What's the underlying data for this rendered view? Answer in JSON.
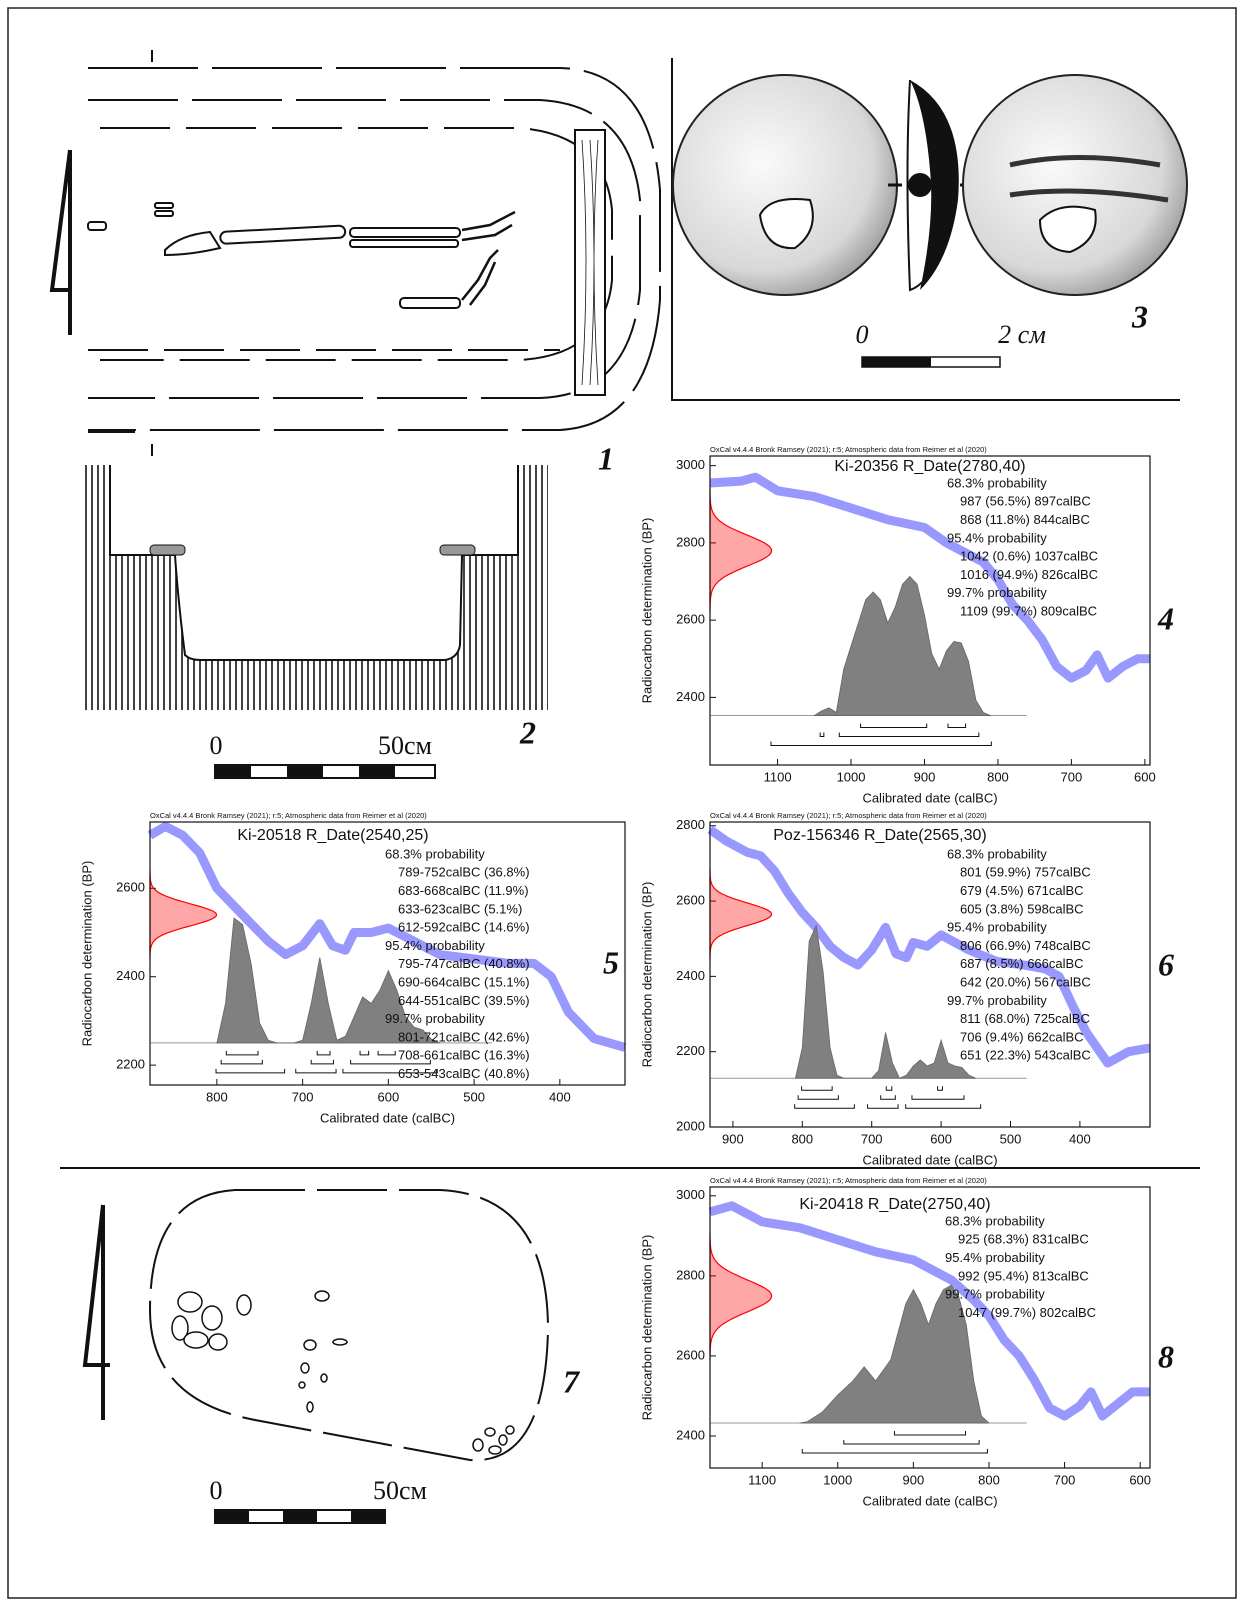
{
  "figure": {
    "panel_labels": [
      "1",
      "2",
      "3",
      "4",
      "5",
      "6",
      "7",
      "8"
    ],
    "scale_bars": [
      {
        "start": "0",
        "end": "50см"
      },
      {
        "start": "0",
        "end": "2 см"
      },
      {
        "start": "0",
        "end": "50см"
      }
    ]
  },
  "chart_data": [
    {
      "type": "calibration",
      "header": "OxCal v4.4.4 Bronk Ramsey (2021); r:5; Atmospheric data from Reimer et al (2020)",
      "title": "Ki-20356 R_Date(2780,40)",
      "r_date": {
        "mean": 2780,
        "sd": 40
      },
      "xlabel": "Calibrated date (calBC)",
      "ylabel": "Radiocarbon determination (BP)",
      "xlim": [
        1192,
        593
      ],
      "ylim": [
        2225,
        3025
      ],
      "xticks": [
        1100,
        1000,
        900,
        800,
        700,
        600
      ],
      "yticks": [
        2400,
        2600,
        2800,
        3000
      ],
      "likelihood_color": "#ff0000",
      "curve": {
        "color": "#4444ff",
        "x": [
          1192,
          1150,
          1130,
          1100,
          1050,
          1000,
          950,
          900,
          870,
          850,
          820,
          800,
          780,
          760,
          740,
          720,
          700,
          680,
          665,
          650,
          630,
          610,
          593
        ],
        "values": [
          2955,
          2960,
          2970,
          2935,
          2920,
          2890,
          2860,
          2840,
          2800,
          2780,
          2750,
          2705,
          2640,
          2600,
          2550,
          2480,
          2450,
          2470,
          2510,
          2450,
          2480,
          2500,
          2500
        ]
      },
      "posterior": {
        "color": "#808080",
        "x": [
          1050,
          1040,
          1030,
          1020,
          1010,
          1000,
          990,
          980,
          970,
          960,
          950,
          940,
          930,
          920,
          910,
          900,
          890,
          880,
          870,
          860,
          850,
          840,
          830,
          820,
          810
        ],
        "values": [
          0,
          0.03,
          0.05,
          0.02,
          0.3,
          0.45,
          0.6,
          0.75,
          0.8,
          0.75,
          0.6,
          0.7,
          0.85,
          0.9,
          0.85,
          0.65,
          0.4,
          0.3,
          0.42,
          0.48,
          0.47,
          0.35,
          0.1,
          0.02,
          0
        ]
      },
      "ranges": [
        {
          "label": "68.3% probability",
          "intervals": [
            {
              "from": 987,
              "to": 897,
              "text": "987 (56.5%) 897calBC"
            },
            {
              "from": 868,
              "to": 844,
              "text": "868 (11.8%) 844calBC"
            }
          ]
        },
        {
          "label": "95.4% probability",
          "intervals": [
            {
              "from": 1042,
              "to": 1037,
              "text": "1042 (0.6%) 1037calBC"
            },
            {
              "from": 1016,
              "to": 826,
              "text": "1016 (94.9%) 826calBC"
            }
          ]
        },
        {
          "label": "99.7% probability",
          "intervals": [
            {
              "from": 1109,
              "to": 809,
              "text": "1109 (99.7%) 809calBC"
            }
          ]
        }
      ]
    },
    {
      "type": "calibration",
      "header": "OxCal v4.4.4 Bronk Ramsey (2021); r:5; Atmospheric data from Reimer et al (2020)",
      "title": "Ki-20518 R_Date(2540,25)",
      "r_date": {
        "mean": 2540,
        "sd": 25
      },
      "xlabel": "Calibrated date (calBC)",
      "ylabel": "Radiocarbon determination (BP)",
      "xlim": [
        878,
        324
      ],
      "ylim": [
        2155,
        2750
      ],
      "xticks": [
        800,
        700,
        600,
        500,
        400
      ],
      "yticks": [
        2200,
        2400,
        2600
      ],
      "likelihood_color": "#ff0000",
      "curve": {
        "color": "#4444ff",
        "x": [
          878,
          860,
          840,
          820,
          800,
          780,
          760,
          740,
          720,
          700,
          680,
          665,
          650,
          640,
          620,
          600,
          580,
          560,
          540,
          500,
          460,
          430,
          410,
          390,
          360,
          324
        ],
        "values": [
          2720,
          2740,
          2720,
          2680,
          2600,
          2560,
          2520,
          2480,
          2450,
          2470,
          2520,
          2470,
          2460,
          2500,
          2500,
          2510,
          2490,
          2470,
          2450,
          2440,
          2430,
          2430,
          2400,
          2320,
          2260,
          2240
        ]
      },
      "posterior": {
        "color": "#808080",
        "x": [
          800,
          790,
          780,
          770,
          760,
          750,
          740,
          730,
          720,
          710,
          700,
          690,
          680,
          670,
          660,
          650,
          640,
          630,
          620,
          610,
          600,
          590,
          580,
          570,
          560,
          550,
          540
        ],
        "values": [
          0,
          0.3,
          0.95,
          0.9,
          0.6,
          0.15,
          0.02,
          0,
          0,
          0,
          0.02,
          0.3,
          0.65,
          0.3,
          0.02,
          0.05,
          0.2,
          0.35,
          0.3,
          0.4,
          0.55,
          0.4,
          0.2,
          0.12,
          0.1,
          0.03,
          0
        ]
      },
      "ranges": [
        {
          "label": "68.3% probability",
          "intervals": [
            {
              "from": 789,
              "to": 752,
              "text": "789-752calBC (36.8%)"
            },
            {
              "from": 683,
              "to": 668,
              "text": "683-668calBC (11.9%)"
            },
            {
              "from": 633,
              "to": 623,
              "text": "633-623calBC (5.1%)"
            },
            {
              "from": 612,
              "to": 592,
              "text": "612-592calBC (14.6%)"
            }
          ]
        },
        {
          "label": "95.4% probability",
          "intervals": [
            {
              "from": 795,
              "to": 747,
              "text": "795-747calBC (40.8%)"
            },
            {
              "from": 690,
              "to": 664,
              "text": "690-664calBC (15.1%)"
            },
            {
              "from": 644,
              "to": 551,
              "text": "644-551calBC (39.5%)"
            }
          ]
        },
        {
          "label": "99.7% probability",
          "intervals": [
            {
              "from": 801,
              "to": 721,
              "text": "801-721calBC (42.6%)"
            },
            {
              "from": 708,
              "to": 661,
              "text": "708-661calBC (16.3%)"
            },
            {
              "from": 653,
              "to": 543,
              "text": "653-543calBC (40.8%)"
            }
          ]
        }
      ]
    },
    {
      "type": "calibration",
      "header": "OxCal v4.4.4 Bronk Ramsey (2021); r:5; Atmospheric data from Reimer et al (2020)",
      "title": "Poz-156346 R_Date(2565,30)",
      "r_date": {
        "mean": 2565,
        "sd": 30
      },
      "xlabel": "Calibrated date (calBC)",
      "ylabel": "Radiocarbon determination (BP)",
      "xlim": [
        933,
        299
      ],
      "ylim": [
        2000,
        2810
      ],
      "xticks": [
        900,
        800,
        700,
        600,
        500,
        400
      ],
      "yticks": [
        2000,
        2200,
        2400,
        2600,
        2800
      ],
      "likelihood_color": "#ff0000",
      "curve": {
        "color": "#4444ff",
        "x": [
          933,
          910,
          880,
          860,
          840,
          820,
          800,
          780,
          760,
          740,
          720,
          700,
          680,
          665,
          650,
          640,
          620,
          600,
          580,
          560,
          520,
          480,
          450,
          430,
          410,
          390,
          360,
          330,
          299
        ],
        "values": [
          2790,
          2760,
          2730,
          2720,
          2680,
          2620,
          2570,
          2530,
          2480,
          2450,
          2430,
          2470,
          2530,
          2460,
          2450,
          2490,
          2480,
          2510,
          2490,
          2470,
          2440,
          2430,
          2420,
          2400,
          2320,
          2250,
          2170,
          2200,
          2210
        ]
      },
      "posterior": {
        "color": "#808080",
        "x": [
          810,
          800,
          790,
          780,
          770,
          760,
          750,
          740,
          700,
          690,
          680,
          670,
          660,
          650,
          640,
          630,
          620,
          610,
          600,
          590,
          580,
          570,
          560,
          550
        ],
        "values": [
          0,
          0.2,
          0.9,
          1.0,
          0.7,
          0.2,
          0.02,
          0,
          0,
          0.05,
          0.3,
          0.1,
          0,
          0.02,
          0.08,
          0.12,
          0.08,
          0.1,
          0.25,
          0.1,
          0.08,
          0.07,
          0.02,
          0
        ]
      },
      "ranges": [
        {
          "label": "68.3% probability",
          "intervals": [
            {
              "from": 801,
              "to": 757,
              "text": "801 (59.9%) 757calBC"
            },
            {
              "from": 679,
              "to": 671,
              "text": "679 (4.5%) 671calBC"
            },
            {
              "from": 605,
              "to": 598,
              "text": "605 (3.8%) 598calBC"
            }
          ]
        },
        {
          "label": "95.4% probability",
          "intervals": [
            {
              "from": 806,
              "to": 748,
              "text": "806 (66.9%) 748calBC"
            },
            {
              "from": 687,
              "to": 666,
              "text": "687 (8.5%) 666calBC"
            },
            {
              "from": 642,
              "to": 567,
              "text": "642 (20.0%) 567calBC"
            }
          ]
        },
        {
          "label": "99.7% probability",
          "intervals": [
            {
              "from": 811,
              "to": 725,
              "text": "811 (68.0%) 725calBC"
            },
            {
              "from": 706,
              "to": 662,
              "text": "706 (9.4%) 662calBC"
            },
            {
              "from": 651,
              "to": 543,
              "text": "651 (22.3%) 543calBC"
            }
          ]
        }
      ]
    },
    {
      "type": "calibration",
      "header": "OxCal v4.4.4 Bronk Ramsey (2021); r:5; Atmospheric data from Reimer et al (2020)",
      "title": "Ki-20418 R_Date(2750,40)",
      "r_date": {
        "mean": 2750,
        "sd": 40
      },
      "xlabel": "Calibrated date (calBC)",
      "ylabel": "Radiocarbon determination (BP)",
      "xlim": [
        1169,
        587
      ],
      "ylim": [
        2320,
        3022
      ],
      "xticks": [
        1100,
        1000,
        900,
        800,
        700,
        600
      ],
      "yticks": [
        2400,
        2600,
        2800,
        3000
      ],
      "likelihood_color": "#ff0000",
      "curve": {
        "color": "#4444ff",
        "x": [
          1169,
          1140,
          1100,
          1050,
          1000,
          950,
          900,
          870,
          850,
          820,
          800,
          780,
          760,
          740,
          720,
          700,
          680,
          665,
          650,
          630,
          610,
          587
        ],
        "values": [
          2960,
          2975,
          2935,
          2920,
          2890,
          2860,
          2840,
          2810,
          2790,
          2740,
          2700,
          2640,
          2600,
          2540,
          2470,
          2450,
          2475,
          2510,
          2450,
          2480,
          2510,
          2510
        ]
      },
      "posterior": {
        "color": "#808080",
        "x": [
          1050,
          1040,
          1020,
          1000,
          980,
          965,
          950,
          930,
          910,
          900,
          890,
          880,
          870,
          860,
          850,
          840,
          830,
          820,
          810,
          800
        ],
        "values": [
          0,
          0.01,
          0.08,
          0.2,
          0.3,
          0.4,
          0.3,
          0.45,
          0.85,
          0.95,
          0.85,
          0.7,
          0.85,
          0.95,
          0.98,
          0.9,
          0.7,
          0.3,
          0.05,
          0
        ]
      },
      "ranges": [
        {
          "label": "68.3% probability",
          "intervals": [
            {
              "from": 925,
              "to": 831,
              "text": "925 (68.3%) 831calBC"
            }
          ]
        },
        {
          "label": "95.4% probability",
          "intervals": [
            {
              "from": 992,
              "to": 813,
              "text": "992 (95.4%) 813calBC"
            }
          ]
        },
        {
          "label": "99.7% probability",
          "intervals": [
            {
              "from": 1047,
              "to": 802,
              "text": "1047 (99.7%) 802calBC"
            }
          ]
        }
      ]
    }
  ]
}
